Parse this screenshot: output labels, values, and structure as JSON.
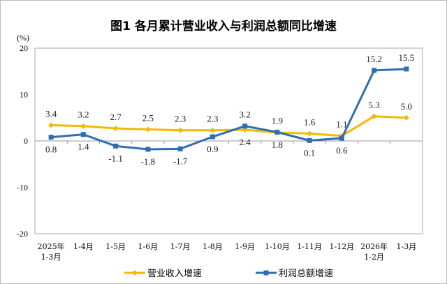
{
  "chart_data": {
    "type": "line",
    "title": "图1  各月累计营业收入与利润总额同比增速",
    "ylabel": "(%)",
    "ylim": [
      -20,
      20
    ],
    "yticks": [
      20,
      10,
      0,
      -10,
      -20
    ],
    "grid": false,
    "legend_position": "bottom",
    "categories": [
      [
        "2025年",
        "1-3月"
      ],
      [
        "1-4月"
      ],
      [
        "1-5月"
      ],
      [
        "1-6月"
      ],
      [
        "1-7月"
      ],
      [
        "1-8月"
      ],
      [
        "1-9月"
      ],
      [
        "1-10月"
      ],
      [
        "1-11月"
      ],
      [
        "1-12月"
      ],
      [
        "2026年",
        "1-2月"
      ],
      [
        "1-3月"
      ]
    ],
    "series": [
      {
        "name": "营业收入增速",
        "color": "#f5b800",
        "marker": "diamond",
        "values": [
          3.4,
          3.2,
          2.7,
          2.5,
          2.3,
          2.3,
          2.4,
          1.8,
          1.6,
          1.1,
          5.3,
          5.0
        ],
        "labels": [
          "3.4",
          "3.2",
          "2.7",
          "2.5",
          "2.3",
          "2.3",
          "2.4",
          "1.8",
          "1.6",
          "1.1",
          "5.3",
          "5.0"
        ]
      },
      {
        "name": "利润总额增速",
        "color": "#2e6db4",
        "marker": "square",
        "values": [
          0.8,
          1.4,
          -1.1,
          -1.8,
          -1.7,
          0.9,
          3.2,
          1.9,
          0.1,
          0.6,
          15.2,
          15.5
        ],
        "labels": [
          "0.8",
          "1.4",
          "-1.1",
          "-1.8",
          "-1.7",
          "0.9",
          "3.2",
          "1.9",
          "0.1",
          "0.6",
          "15.2",
          "15.5"
        ]
      }
    ]
  }
}
